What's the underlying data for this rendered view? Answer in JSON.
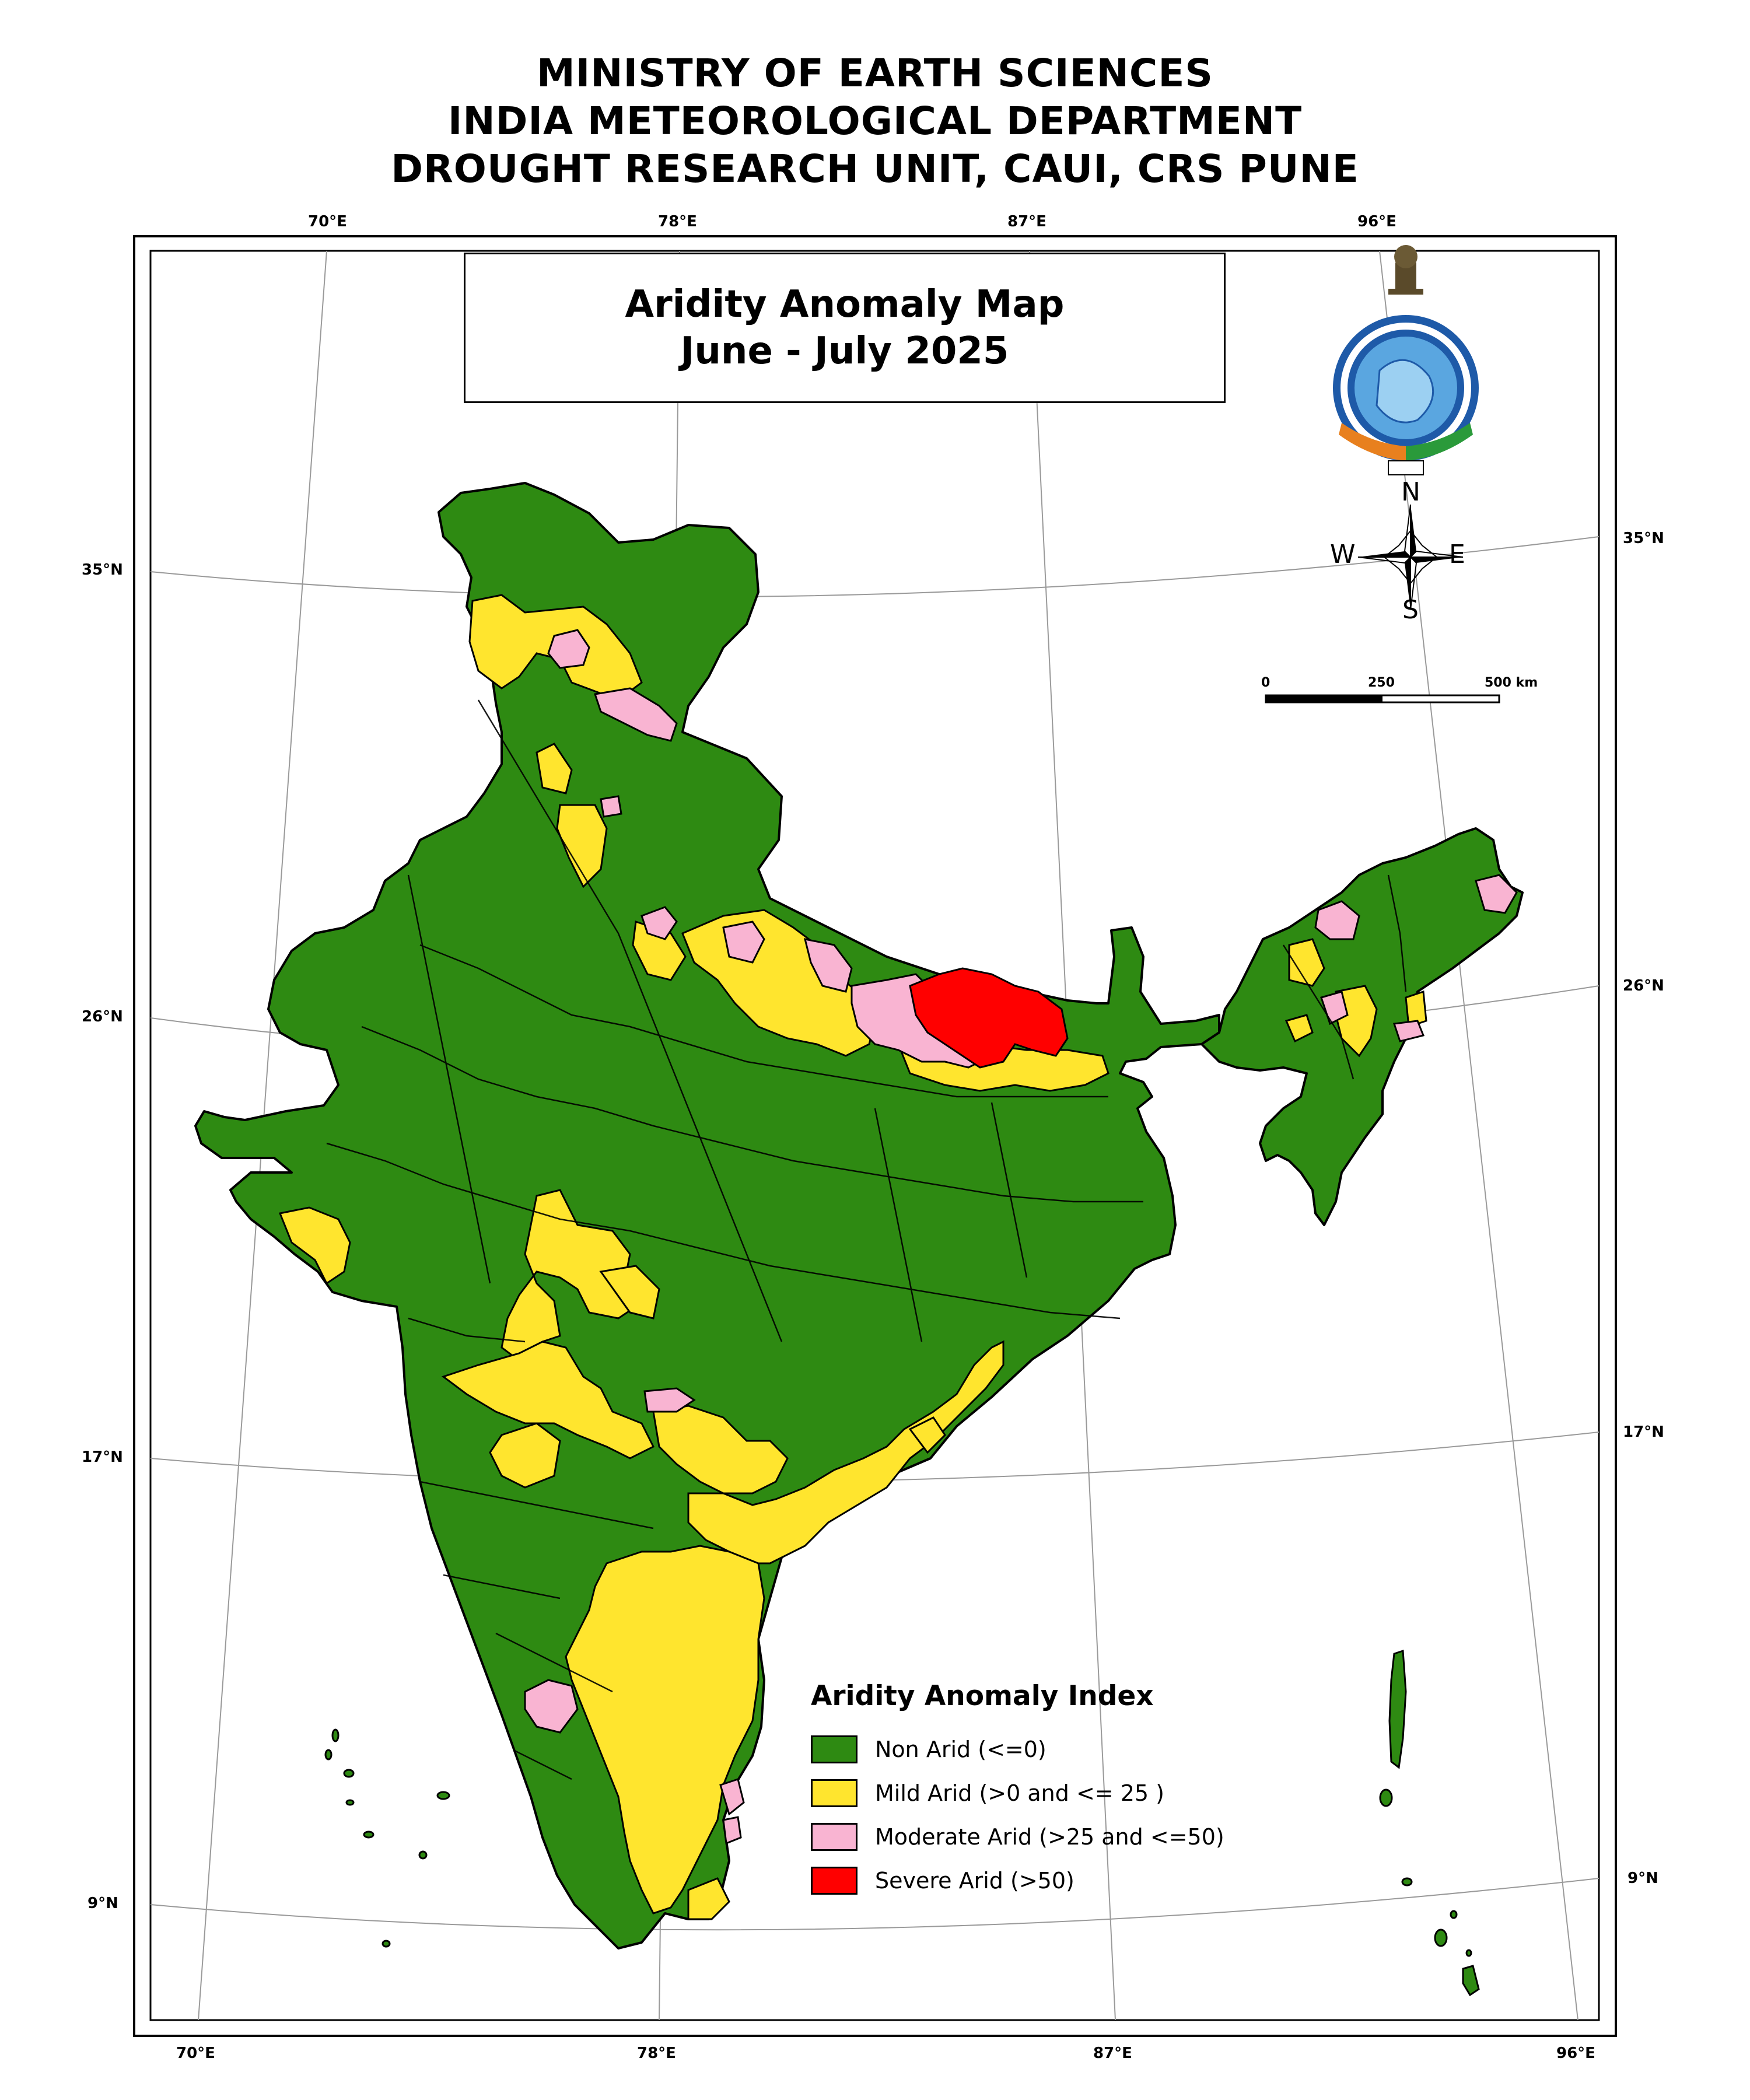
{
  "header": {
    "lines": [
      "MINISTRY OF EARTH SCIENCES",
      "INDIA METEOROLOGICAL DEPARTMENT",
      "DROUGHT RESEARCH UNIT, CAUI, CRS PUNE"
    ]
  },
  "map_title": {
    "line1": "Aridity Anomaly Map",
    "line2": "June - July 2025"
  },
  "graticule": {
    "top": [
      "70°E",
      "78°E",
      "87°E",
      "96°E"
    ],
    "bottom": [
      "70°E",
      "78°E",
      "87°E",
      "96°E"
    ],
    "left": [
      "35°N",
      "26°N",
      "17°N",
      "9°N"
    ],
    "right": [
      "35°N",
      "26°N",
      "17°N",
      "9°N"
    ]
  },
  "compass": {
    "n": "N",
    "s": "S",
    "e": "E",
    "w": "W"
  },
  "scale_bar": {
    "labels": [
      "0",
      "250",
      "500 km"
    ]
  },
  "legend": {
    "title": "Aridity Anomaly Index",
    "items": [
      {
        "label": "Non Arid (<=0)",
        "color": "#2e8a12"
      },
      {
        "label": "Mild Arid (>0 and <= 25 )",
        "color": "#ffe52e"
      },
      {
        "label": "Moderate Arid (>25 and <=50)",
        "color": "#f9b4d2"
      },
      {
        "label": "Severe Arid (>50)",
        "color": "#ff0000"
      }
    ]
  },
  "colors": {
    "non_arid": "#2e8a12",
    "mild": "#ffe52e",
    "moderate": "#f9b4d2",
    "severe": "#ff0000"
  }
}
